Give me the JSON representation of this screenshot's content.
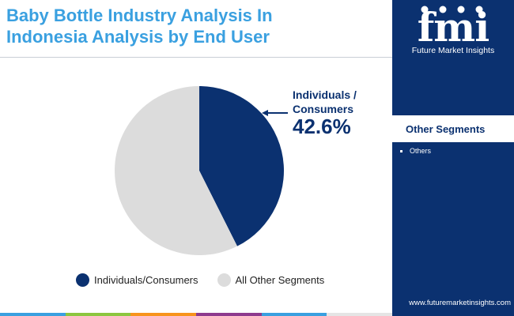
{
  "header": {
    "title_line1": "Baby Bottle Industry Analysis In",
    "title_line2": "Indonesia Analysis by End User"
  },
  "brand": {
    "logo_text": "fmi",
    "name": "Future Market Insights",
    "url": "www.futuremarketinsights.com"
  },
  "sidebar": {
    "heading": "Other Segments",
    "items": [
      "Others"
    ]
  },
  "callout": {
    "label_line1": "Individuals /",
    "label_line2": "Consumers",
    "value": "42.6%"
  },
  "colors": {
    "primary": "#0b3170",
    "secondary": "#dcdcdc",
    "title": "#3aa0e0"
  },
  "chart_data": {
    "type": "pie",
    "title": "",
    "slices": [
      {
        "label": "Individuals/Consumers",
        "value": 42.6,
        "color": "#0b3170"
      },
      {
        "label": "All Other Segments",
        "value": 57.4,
        "color": "#dcdcdc"
      }
    ],
    "legend_position": "bottom"
  }
}
